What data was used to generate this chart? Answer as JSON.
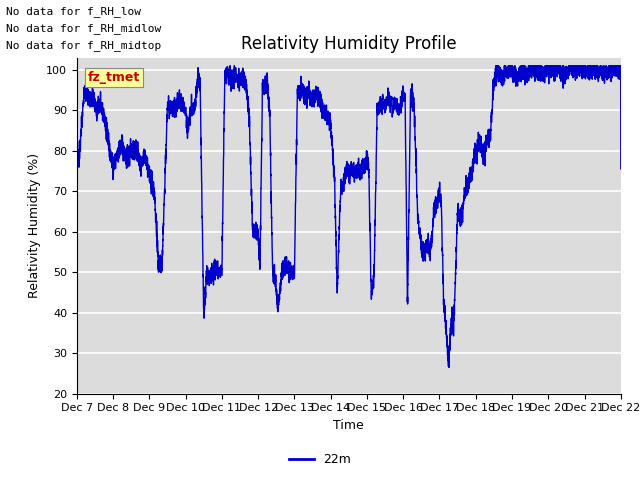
{
  "title": "Relativity Humidity Profile",
  "xlabel": "Time",
  "ylabel": "Relativity Humidity (%)",
  "ylim": [
    20,
    103
  ],
  "yticks": [
    20,
    30,
    40,
    50,
    60,
    70,
    80,
    90,
    100
  ],
  "line_color": "#0000CC",
  "line_width": 1.0,
  "bg_color": "#DCDCDC",
  "legend_label": "22m",
  "annotations": [
    "No data for f_RH_low",
    "No data for f_RH_midlow",
    "No data for f_RH_midtop"
  ],
  "annotation_color": "#000000",
  "legend_box_color": "#FFFF99",
  "legend_text_color": "#CC0000",
  "xtick_labels": [
    "Dec 7",
    "Dec 8",
    "Dec 9",
    "Dec 10",
    "Dec 11",
    "Dec 12",
    "Dec 13",
    "Dec 14",
    "Dec 15",
    "Dec 16",
    "Dec 17",
    "Dec 18",
    "Dec 19",
    "Dec 20",
    "Dec 21",
    "Dec 22"
  ],
  "title_fontsize": 12,
  "axis_label_fontsize": 9,
  "tick_fontsize": 8,
  "annotation_fontsize": 8
}
